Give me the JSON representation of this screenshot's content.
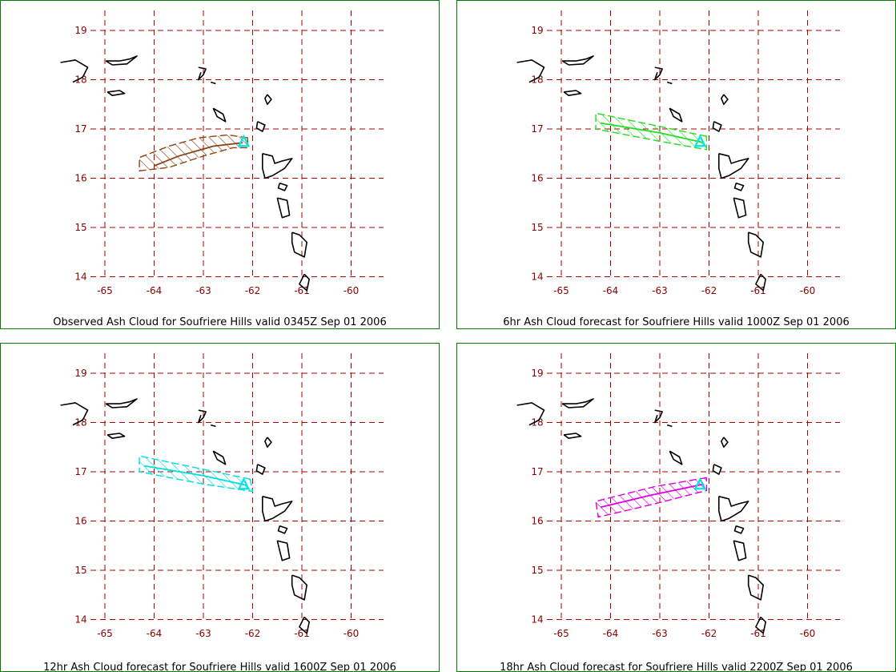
{
  "map": {
    "lon_ticks": [
      "-65",
      "-64",
      "-63",
      "-62",
      "-61",
      "-60"
    ],
    "lat_ticks": [
      "19",
      "18",
      "17",
      "16",
      "15",
      "14"
    ],
    "grid_color": "#aa0000",
    "tick_color": "#8b0000",
    "coast_color": "#000000",
    "volcano_marker_color": "#00e5e5"
  },
  "panels": [
    {
      "caption": "Observed Ash Cloud for Soufriere  Hills valid 0345Z Sep 01 2006",
      "cloud_color": "#8b4513",
      "centerline": [
        [
          -62.2,
          16.72
        ],
        [
          -62.8,
          16.65
        ],
        [
          -63.5,
          16.45
        ],
        [
          -64.0,
          16.25
        ]
      ],
      "polygon": [
        [
          -62.1,
          16.82
        ],
        [
          -62.5,
          16.88
        ],
        [
          -63.1,
          16.82
        ],
        [
          -63.7,
          16.65
        ],
        [
          -64.3,
          16.42
        ],
        [
          -64.3,
          16.15
        ],
        [
          -63.7,
          16.22
        ],
        [
          -63.0,
          16.45
        ],
        [
          -62.4,
          16.62
        ],
        [
          -62.1,
          16.62
        ]
      ]
    },
    {
      "caption": "6hr Ash Cloud forecast for Soufriere  Hills valid 1000Z Sep 01 2006",
      "cloud_color": "#22dd22",
      "centerline": [
        [
          -62.1,
          16.72
        ],
        [
          -63.0,
          16.92
        ],
        [
          -64.2,
          17.12
        ]
      ],
      "polygon": [
        [
          -62.05,
          16.85
        ],
        [
          -63.0,
          17.05
        ],
        [
          -64.3,
          17.32
        ],
        [
          -64.3,
          17.0
        ],
        [
          -63.0,
          16.75
        ],
        [
          -62.05,
          16.58
        ]
      ]
    },
    {
      "caption": "12hr Ash Cloud forecast for Soufriere  Hills valid 1600Z Sep 01 2006",
      "cloud_color": "#00dddd",
      "centerline": [
        [
          -62.1,
          16.72
        ],
        [
          -63.0,
          16.92
        ],
        [
          -64.2,
          17.12
        ]
      ],
      "polygon": [
        [
          -62.05,
          16.85
        ],
        [
          -63.0,
          17.05
        ],
        [
          -64.3,
          17.32
        ],
        [
          -64.3,
          17.0
        ],
        [
          -63.0,
          16.75
        ],
        [
          -62.0,
          16.6
        ]
      ]
    },
    {
      "caption": "18hr Ash Cloud forecast for Soufriere  Hills valid 2200Z Sep 01 2006",
      "cloud_color": "#dd00dd",
      "centerline": [
        [
          -62.1,
          16.75
        ],
        [
          -63.2,
          16.52
        ],
        [
          -64.2,
          16.28
        ]
      ],
      "polygon": [
        [
          -62.05,
          16.88
        ],
        [
          -63.1,
          16.7
        ],
        [
          -64.3,
          16.4
        ],
        [
          -64.25,
          16.08
        ],
        [
          -63.1,
          16.35
        ],
        [
          -62.05,
          16.62
        ]
      ]
    }
  ]
}
